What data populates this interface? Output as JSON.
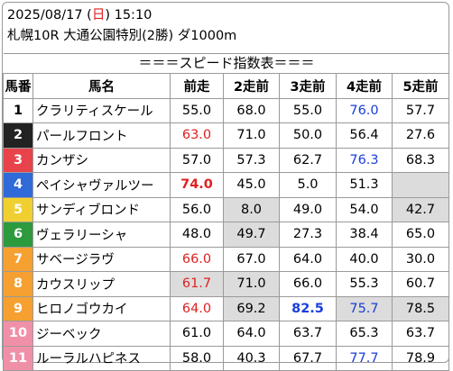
{
  "header": {
    "date_prefix": "2025/08/17 (",
    "weekday": "日",
    "date_suffix": ") 15:10",
    "race_info": "札幌10R 大通公園特別(2勝) ダ1000m",
    "banner": "＝＝＝スピード指数表＝＝＝"
  },
  "colors": {
    "weekday": "#e02020",
    "highlight_red": "#e02020",
    "highlight_blue": "#1a3fd8",
    "grey_cell": "#dcdcdc"
  },
  "table": {
    "columns": [
      "馬番",
      "馬名",
      "前走",
      "2走前",
      "3走前",
      "4走前",
      "5走前"
    ],
    "rows": [
      {
        "num": "1",
        "num_color": "#ffffff",
        "num_text": "#000000",
        "name": "クラリティスケール",
        "vals": [
          "55.0",
          "68.0",
          "55.0",
          "76.0",
          "57.7"
        ],
        "styles": [
          "",
          "",
          "",
          "blue",
          ""
        ],
        "greys": [
          false,
          false,
          false,
          false,
          false
        ]
      },
      {
        "num": "2",
        "num_color": "#222222",
        "num_text": "#ffffff",
        "name": "パールフロント",
        "vals": [
          "63.0",
          "71.0",
          "50.0",
          "56.4",
          "27.6"
        ],
        "styles": [
          "red",
          "",
          "",
          "",
          ""
        ],
        "greys": [
          false,
          false,
          false,
          false,
          false
        ]
      },
      {
        "num": "3",
        "num_color": "#e8424a",
        "num_text": "#ffffff",
        "name": "カンザシ",
        "vals": [
          "57.0",
          "57.3",
          "62.7",
          "76.3",
          "68.3"
        ],
        "styles": [
          "",
          "",
          "",
          "blue",
          ""
        ],
        "greys": [
          false,
          false,
          false,
          false,
          false
        ]
      },
      {
        "num": "4",
        "num_color": "#2f6ad8",
        "num_text": "#ffffff",
        "name": "ペイシャヴァルツー",
        "vals": [
          "74.0",
          "45.0",
          "5.0",
          "51.3",
          ""
        ],
        "styles": [
          "bold-red",
          "",
          "",
          "",
          ""
        ],
        "greys": [
          false,
          false,
          false,
          false,
          true
        ]
      },
      {
        "num": "5",
        "num_color": "#f0d030",
        "num_text": "#ffffff",
        "name": "サンディブロンド",
        "vals": [
          "56.0",
          "8.0",
          "49.0",
          "54.0",
          "42.7"
        ],
        "styles": [
          "",
          "",
          "",
          "",
          ""
        ],
        "greys": [
          false,
          true,
          false,
          false,
          true
        ]
      },
      {
        "num": "6",
        "num_color": "#2e9a3e",
        "num_text": "#ffffff",
        "name": "ヴェラリーシャ",
        "vals": [
          "48.0",
          "49.7",
          "27.3",
          "38.4",
          "65.0"
        ],
        "styles": [
          "",
          "",
          "",
          "",
          ""
        ],
        "greys": [
          false,
          true,
          false,
          false,
          false
        ]
      },
      {
        "num": "7",
        "num_color": "#f5a030",
        "num_text": "#ffffff",
        "name": "サベージラヴ",
        "vals": [
          "66.0",
          "67.0",
          "64.0",
          "40.0",
          "30.0"
        ],
        "styles": [
          "red",
          "",
          "",
          "",
          ""
        ],
        "greys": [
          false,
          false,
          false,
          false,
          false
        ]
      },
      {
        "num": "8",
        "num_color": "#f5a030",
        "num_text": "#ffffff",
        "name": "カウスリップ",
        "vals": [
          "61.7",
          "71.0",
          "66.0",
          "55.3",
          "60.7"
        ],
        "styles": [
          "red",
          "",
          "",
          "",
          ""
        ],
        "greys": [
          true,
          true,
          false,
          false,
          false
        ]
      },
      {
        "num": "9",
        "num_color": "#f5a030",
        "num_text": "#ffffff",
        "name": "ヒロノゴウカイ",
        "vals": [
          "64.0",
          "69.2",
          "82.5",
          "75.7",
          "78.5"
        ],
        "styles": [
          "red",
          "",
          "bold-blue",
          "blue",
          ""
        ],
        "greys": [
          false,
          true,
          false,
          true,
          true
        ]
      },
      {
        "num": "10",
        "num_color": "#f090a8",
        "num_text": "#ffffff",
        "name": "ジーベック",
        "vals": [
          "61.0",
          "64.0",
          "63.7",
          "65.3",
          "63.7"
        ],
        "styles": [
          "",
          "",
          "",
          "",
          ""
        ],
        "greys": [
          false,
          false,
          false,
          false,
          false
        ]
      },
      {
        "num": "11",
        "num_color": "#f090a8",
        "num_text": "#ffffff",
        "name": "ルーラルハピネス",
        "vals": [
          "58.0",
          "40.3",
          "67.7",
          "77.7",
          "78.9"
        ],
        "styles": [
          "",
          "",
          "",
          "blue",
          ""
        ],
        "greys": [
          false,
          false,
          false,
          false,
          false
        ]
      }
    ]
  }
}
